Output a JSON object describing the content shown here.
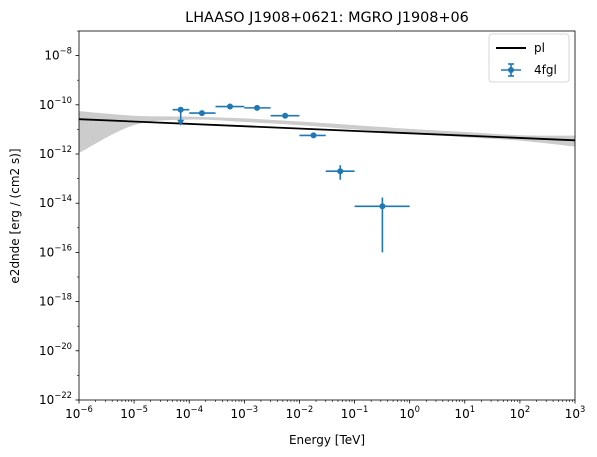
{
  "chart_data": {
    "type": "scatter",
    "title": "LHAASO J1908+0621: MGRO J1908+06",
    "xlabel": "Energy [TeV]",
    "ylabel": "e2dnde [erg / (cm2 s)]",
    "xscale": "log",
    "yscale": "log",
    "xlim": [
      1e-06,
      1000
    ],
    "ylim": [
      1e-22,
      1e-07
    ],
    "x_ticks": [
      {
        "base": "10",
        "exp": "−6",
        "value": 1e-06
      },
      {
        "base": "10",
        "exp": "−5",
        "value": 1e-05
      },
      {
        "base": "10",
        "exp": "−4",
        "value": 0.0001
      },
      {
        "base": "10",
        "exp": "−3",
        "value": 0.001
      },
      {
        "base": "10",
        "exp": "−2",
        "value": 0.01
      },
      {
        "base": "10",
        "exp": "−1",
        "value": 0.1
      },
      {
        "base": "10",
        "exp": "0",
        "value": 1
      },
      {
        "base": "10",
        "exp": "1",
        "value": 10
      },
      {
        "base": "10",
        "exp": "2",
        "value": 100
      },
      {
        "base": "10",
        "exp": "3",
        "value": 1000
      }
    ],
    "y_ticks": [
      {
        "base": "10",
        "exp": "−22",
        "value": 1e-22
      },
      {
        "base": "10",
        "exp": "−20",
        "value": 1e-20
      },
      {
        "base": "10",
        "exp": "−18",
        "value": 1e-18
      },
      {
        "base": "10",
        "exp": "−16",
        "value": 1e-16
      },
      {
        "base": "10",
        "exp": "−14",
        "value": 1e-14
      },
      {
        "base": "10",
        "exp": "−12",
        "value": 1e-12
      },
      {
        "base": "10",
        "exp": "−10",
        "value": 1e-10
      },
      {
        "base": "10",
        "exp": "−8",
        "value": 1e-08
      }
    ],
    "legend_position": "top-right",
    "series": [
      {
        "name": "pl",
        "kind": "line",
        "color": "#000000",
        "x": [
          1e-06,
          1000
        ],
        "y": [
          2.6e-11,
          3.6e-12
        ],
        "band_color": "#cccccc",
        "band_x": [
          1e-06,
          1e-05,
          0.0001,
          0.001,
          0.01,
          0.1,
          1,
          10,
          100,
          1000
        ],
        "band_lower": [
          1.1e-12,
          1.5e-11,
          2.5e-11,
          2e-11,
          1.5e-11,
          1e-11,
          7e-12,
          4.8e-12,
          3.5e-12,
          2e-12
        ],
        "band_upper": [
          5.5e-11,
          3.6e-11,
          3.3e-11,
          2.8e-11,
          2.1e-11,
          1.5e-11,
          1.05e-11,
          7.8e-12,
          5.8e-12,
          5.6e-12
        ]
      },
      {
        "name": "4fgl",
        "kind": "errorbar",
        "color": "#1f77b4",
        "points": [
          {
            "x": 7e-05,
            "y": 6.3e-11,
            "xlo": 5e-05,
            "xhi": 0.0001,
            "ylo": null,
            "yhi": null,
            "upper_limit": true
          },
          {
            "x": 0.00017,
            "y": 4.6e-11,
            "xlo": 0.0001,
            "xhi": 0.0003,
            "ylo": null,
            "yhi": null,
            "upper_limit": false
          },
          {
            "x": 0.00055,
            "y": 8.5e-11,
            "xlo": 0.0003,
            "xhi": 0.001,
            "ylo": null,
            "yhi": null,
            "upper_limit": false
          },
          {
            "x": 0.0017,
            "y": 7.5e-11,
            "xlo": 0.001,
            "xhi": 0.003,
            "ylo": null,
            "yhi": null,
            "upper_limit": false
          },
          {
            "x": 0.0055,
            "y": 3.6e-11,
            "xlo": 0.003,
            "xhi": 0.01,
            "ylo": null,
            "yhi": null,
            "upper_limit": false
          },
          {
            "x": 0.018,
            "y": 5.7e-12,
            "xlo": 0.01,
            "xhi": 0.03,
            "ylo": null,
            "yhi": null,
            "upper_limit": false
          },
          {
            "x": 0.055,
            "y": 2e-13,
            "xlo": 0.03,
            "xhi": 0.1,
            "ylo": 9e-14,
            "yhi": 3.5e-13,
            "upper_limit": false
          },
          {
            "x": 0.32,
            "y": 7.5e-15,
            "xlo": 0.1,
            "xhi": 1.0,
            "ylo": 1e-16,
            "yhi": 1.7e-14,
            "upper_limit": false
          }
        ]
      }
    ]
  }
}
